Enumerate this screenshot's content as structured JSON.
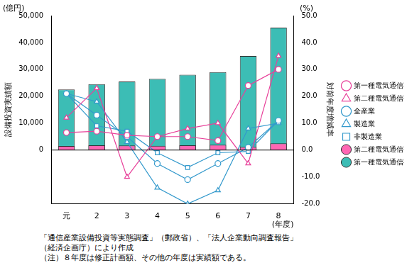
{
  "chart_data": {
    "type": "bar",
    "categories": [
      "元",
      "2",
      "3",
      "4",
      "5",
      "6",
      "7",
      "8"
    ],
    "xlabel": "(年度)",
    "ylabel": "設備投資実績額",
    "y2label": "対前年度増減率",
    "annotations": {
      "y_unit": "(億円)",
      "y2_unit": "(%)"
    },
    "notes": [
      "「通信産業設備投資等実態調査」（郵政省）、「法人企業動向調査報告」",
      "（経済企画庁）により作成",
      "（注）８年度は修正計画額、その他の年度は実績額である。"
    ],
    "ylim": [
      -20000,
      50000
    ],
    "yticks": [
      0,
      {
        "value": 10000,
        "label": "10,000"
      },
      {
        "value": 20000,
        "label": "20,000"
      },
      {
        "value": 30000,
        "label": "30,000"
      },
      {
        "value": 40000,
        "label": "40,000"
      },
      {
        "value": 50000,
        "label": "50,000"
      }
    ],
    "y2lim": [
      -20,
      50
    ],
    "y2ticks": [
      {
        "value": -20,
        "label": "-20.0"
      },
      {
        "value": -10,
        "label": "-10.0"
      },
      {
        "value": 0,
        "label": "0.0"
      },
      {
        "value": 10,
        "label": "10.0"
      },
      {
        "value": 20,
        "label": "20.0"
      },
      {
        "value": 30,
        "label": "30.0"
      },
      {
        "value": 40,
        "label": "40.0"
      },
      {
        "value": 50,
        "label": "50.0"
      }
    ],
    "grid": false,
    "legend": "right",
    "stacked": false,
    "series": [
      {
        "name": "第一種電気通信事業者",
        "type": "bar",
        "color": "#3cbdb5",
        "values": [
          22500,
          24500,
          25500,
          26500,
          28000,
          29000,
          35000,
          45500
        ]
      },
      {
        "name": "第二種電気通信事業者",
        "type": "bar",
        "color": "#ff66b3",
        "values": [
          1500,
          1800,
          1700,
          1600,
          1800,
          2000,
          1200,
          2500
        ]
      },
      {
        "name": "第一種電気通信事業者",
        "type": "line",
        "axis": "y2",
        "color": "#e8409a",
        "marker": "circle",
        "values": [
          6.5,
          7,
          5.5,
          5,
          5,
          3.5,
          24,
          30
        ]
      },
      {
        "name": "第二種電気通信事業者",
        "type": "line",
        "axis": "y2",
        "color": "#e8409a",
        "marker": "triangle",
        "values": [
          12,
          23,
          -10,
          5,
          8,
          10,
          -5,
          35
        ]
      },
      {
        "name": "全産業",
        "type": "line",
        "axis": "y2",
        "color": "#3399cc",
        "marker": "circle",
        "values": [
          21,
          13,
          5,
          -5,
          -11,
          -5,
          1,
          11
        ]
      },
      {
        "name": "製造業",
        "type": "line",
        "axis": "y2",
        "color": "#3399cc",
        "marker": "triangle",
        "values": [
          21,
          18,
          3,
          -14,
          -20,
          -15,
          8,
          10
        ]
      },
      {
        "name": "非製造業",
        "type": "line",
        "axis": "y2",
        "color": "#3399cc",
        "marker": "square",
        "values": [
          21,
          9,
          7,
          -1,
          -6.5,
          -1,
          -0.5,
          11
        ]
      }
    ]
  }
}
